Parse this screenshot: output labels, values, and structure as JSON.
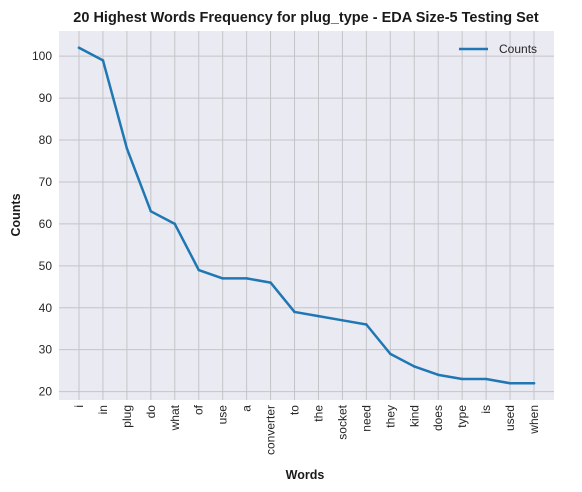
{
  "chart_data": {
    "type": "line",
    "title": "20 Highest Words Frequency for plug_type - EDA Size-5 Testing Set",
    "xlabel": "Words",
    "ylabel": "Counts",
    "categories": [
      "i",
      "in",
      "plug",
      "do",
      "what",
      "of",
      "use",
      "a",
      "converter",
      "to",
      "the",
      "socket",
      "need",
      "they",
      "kind",
      "does",
      "type",
      "is",
      "used",
      "when"
    ],
    "series": [
      {
        "name": "Counts",
        "values": [
          102,
          99,
          78,
          63,
          60,
          49,
          47,
          47,
          46,
          39,
          38,
          37,
          36,
          29,
          26,
          24,
          23,
          23,
          22,
          22
        ]
      }
    ],
    "yticks": [
      20,
      30,
      40,
      50,
      60,
      70,
      80,
      90,
      100
    ],
    "ylim": [
      18,
      106
    ],
    "grid": true,
    "legend_position": "top-right",
    "colors": {
      "background": "#eaeaf2",
      "grid": "#c4c4c8",
      "line": "#1f77b4"
    }
  }
}
